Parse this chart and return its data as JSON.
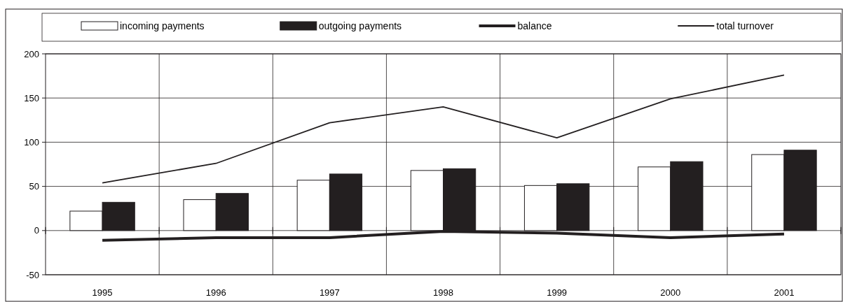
{
  "chart_data": {
    "type": "bar",
    "categories": [
      "1995",
      "1996",
      "1997",
      "1998",
      "1999",
      "2000",
      "2001"
    ],
    "series": [
      {
        "name": "incoming payments",
        "type": "bar",
        "color": "#ffffff",
        "values": [
          22,
          35,
          57,
          68,
          51,
          72,
          86
        ]
      },
      {
        "name": "outgoing payments",
        "type": "bar",
        "color": "#231f20",
        "values": [
          32,
          42,
          64,
          70,
          53,
          78,
          91
        ]
      },
      {
        "name": "balance",
        "type": "line",
        "color": "#231f20",
        "values": [
          -11,
          -8,
          -8,
          -1,
          -3,
          -8,
          -4
        ]
      },
      {
        "name": "total turnover",
        "type": "line",
        "color": "#231f20",
        "values": [
          54,
          76,
          122,
          140,
          105,
          149,
          176
        ]
      }
    ],
    "ylim": [
      -50,
      200
    ],
    "yticks": [
      -50,
      0,
      50,
      100,
      150,
      200
    ],
    "grid": true,
    "legend": "top",
    "line_style": "solid"
  }
}
